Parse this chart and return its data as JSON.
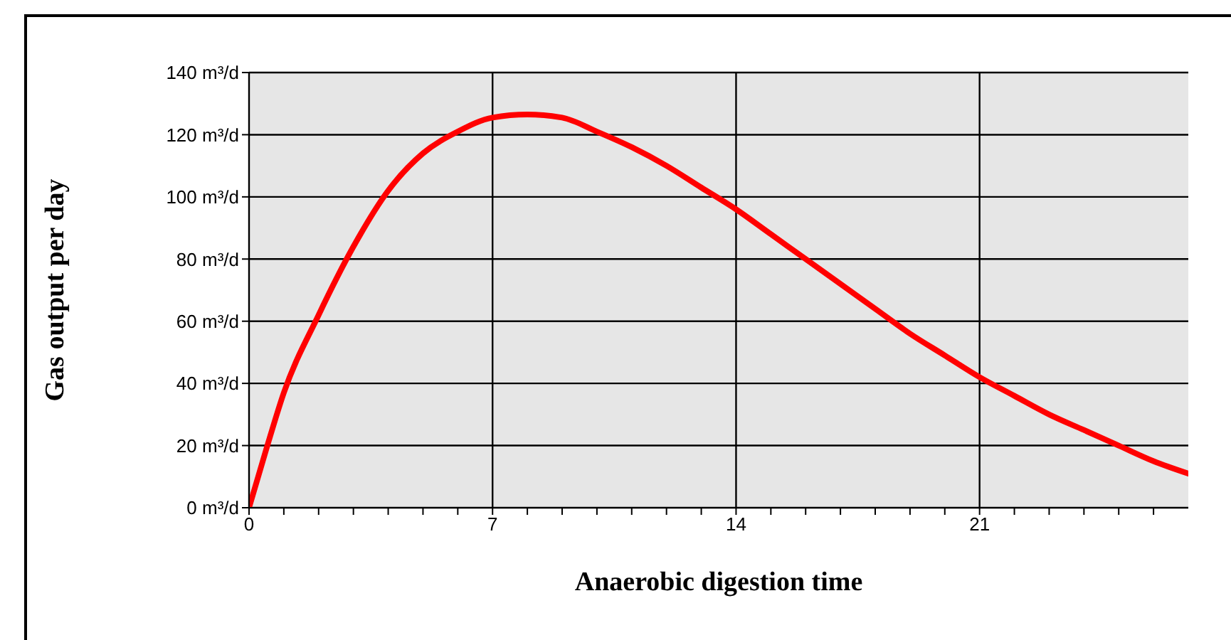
{
  "chart_data": {
    "type": "line",
    "xlabel": "Anaerobic digestion time",
    "ylabel": "Gas output per day",
    "x": [
      0,
      0.5,
      1,
      2,
      3,
      4,
      5,
      6,
      7,
      8,
      9,
      10,
      11,
      12,
      13,
      14,
      15,
      16,
      17,
      18,
      19,
      20,
      21,
      22,
      23,
      24,
      25,
      26,
      27
    ],
    "series": [
      {
        "color": "#ff0000",
        "values": [
          0,
          19,
          37,
          62,
          84,
          102,
          114,
          121,
          125.5,
          126.5,
          125.5,
          121,
          116,
          110,
          103,
          96,
          88,
          80,
          72,
          64,
          56,
          49,
          42,
          36,
          30,
          25,
          20,
          15,
          11
        ]
      }
    ],
    "xlim": [
      0,
      27
    ],
    "xticks": [
      0,
      {
        "value": 1,
        "label": null
      },
      {
        "value": 2,
        "label": null
      },
      {
        "value": 3,
        "label": null
      },
      {
        "value": 4,
        "label": null
      },
      {
        "value": 5,
        "label": null
      },
      {
        "value": 6,
        "label": null
      },
      7,
      {
        "value": 8,
        "label": null
      },
      {
        "value": 9,
        "label": null
      },
      {
        "value": 10,
        "label": null
      },
      {
        "value": 11,
        "label": null
      },
      {
        "value": 12,
        "label": null
      },
      {
        "value": 13,
        "label": null
      },
      14,
      {
        "value": 15,
        "label": null
      },
      {
        "value": 16,
        "label": null
      },
      {
        "value": 17,
        "label": null
      },
      {
        "value": 18,
        "label": null
      },
      {
        "value": 19,
        "label": null
      },
      {
        "value": 20,
        "label": null
      },
      21,
      {
        "value": 22,
        "label": null
      },
      {
        "value": 23,
        "label": null
      },
      {
        "value": 24,
        "label": null
      },
      {
        "value": 25,
        "label": null
      },
      {
        "value": 26,
        "label": null
      }
    ],
    "ylim": [
      0,
      140
    ],
    "yticks": [
      {
        "value": 0,
        "label": "0 m³/d"
      },
      {
        "value": 20,
        "label": "20 m³/d"
      },
      {
        "value": 40,
        "label": "40 m³/d"
      },
      {
        "value": 60,
        "label": "60 m³/d"
      },
      {
        "value": 80,
        "label": "80 m³/d"
      },
      {
        "value": 100,
        "label": "100 m³/d"
      },
      {
        "value": 120,
        "label": "120 m³/d"
      },
      {
        "value": 140,
        "label": "140 m³/d"
      }
    ],
    "grid": true,
    "legend": false,
    "marker": "none",
    "line_style": "solid"
  }
}
